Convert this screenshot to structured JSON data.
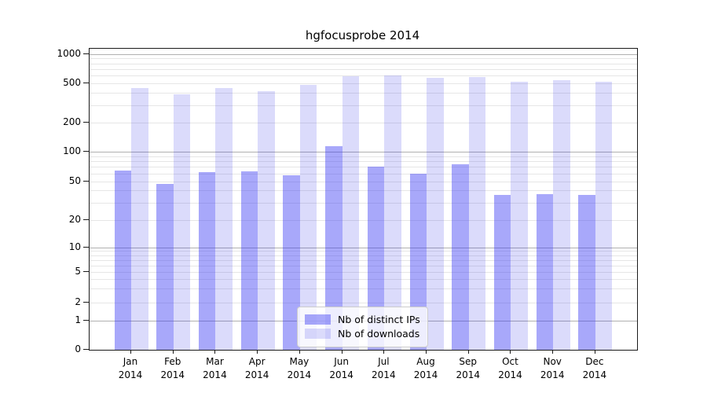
{
  "chart_data": {
    "type": "bar",
    "title": "hgfocusprobe 2014",
    "categories": [
      "Jan 2014",
      "Feb 2014",
      "Mar 2014",
      "Apr 2014",
      "May 2014",
      "Jun 2014",
      "Jul 2014",
      "Aug 2014",
      "Sep 2014",
      "Oct 2014",
      "Nov 2014",
      "Dec 2014"
    ],
    "series": [
      {
        "name": "Nb of distinct IPs",
        "color": "rgba(62,62,245,0.45)",
        "values": [
          64,
          47,
          62,
          63,
          57,
          113,
          70,
          60,
          74,
          36,
          37,
          36
        ]
      },
      {
        "name": "Nb of downloads",
        "color": "rgba(30,30,230,0.16)",
        "values": [
          448,
          387,
          445,
          415,
          478,
          590,
          600,
          565,
          583,
          515,
          538,
          515
        ]
      }
    ],
    "yscale": "symlog",
    "ylim": [
      0,
      1150
    ],
    "yticks": [
      0,
      1,
      2,
      5,
      10,
      20,
      50,
      100,
      200,
      500,
      1000
    ],
    "grid": "both",
    "legend_position": "lower center",
    "colors": {
      "major_grid": "#b0b0b0",
      "minor_grid": "#e6e6e6",
      "axis": "#1a1a1a"
    }
  }
}
